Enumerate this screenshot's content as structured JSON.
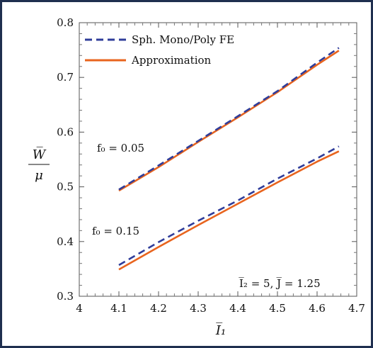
{
  "chart_data": {
    "type": "line",
    "xlabel": "I̅₁",
    "ylabel_numerator": "W̅",
    "ylabel_denominator": "μ",
    "xlim": [
      4.0,
      4.7
    ],
    "ylim": [
      0.3,
      0.8
    ],
    "xticks": [
      4.0,
      4.1,
      4.2,
      4.3,
      4.4,
      4.5,
      4.6,
      4.7
    ],
    "yticks": [
      0.3,
      0.4,
      0.5,
      0.6,
      0.7,
      0.8
    ],
    "xtick_labels": [
      "4",
      "4.1",
      "4.2",
      "4.3",
      "4.4",
      "4.5",
      "4.6",
      "4.7"
    ],
    "ytick_labels": [
      "0.3",
      "0.4",
      "0.5",
      "0.6",
      "0.7",
      "0.8"
    ],
    "grid": false,
    "legend_position": "top-left",
    "legend": [
      {
        "label": "Sph. Mono/Poly FE",
        "color": "#2f3d9a",
        "style": "dashed"
      },
      {
        "label": "Approximation",
        "color": "#e8641e",
        "style": "solid"
      }
    ],
    "annotations": [
      {
        "text": "f₀ = 0.05"
      },
      {
        "text": "f₀ = 0.15"
      },
      {
        "text": "I̅₂ = 5,  J̅ = 1.25"
      }
    ],
    "series": [
      {
        "group": "f0=0.05",
        "kind": "fe",
        "color": "#2f3d9a",
        "style": "dashed",
        "x": [
          4.1,
          4.2,
          4.3,
          4.4,
          4.5,
          4.6,
          4.655
        ],
        "y": [
          0.495,
          0.539,
          0.584,
          0.629,
          0.675,
          0.727,
          0.754
        ]
      },
      {
        "group": "f0=0.05",
        "kind": "approx",
        "color": "#e8641e",
        "style": "solid",
        "x": [
          4.1,
          4.2,
          4.3,
          4.4,
          4.5,
          4.6,
          4.655
        ],
        "y": [
          0.493,
          0.536,
          0.582,
          0.627,
          0.673,
          0.723,
          0.749
        ]
      },
      {
        "group": "f0=0.15",
        "kind": "fe",
        "color": "#2f3d9a",
        "style": "dashed",
        "x": [
          4.1,
          4.2,
          4.3,
          4.4,
          4.5,
          4.6,
          4.655
        ],
        "y": [
          0.357,
          0.399,
          0.438,
          0.475,
          0.515,
          0.552,
          0.574
        ]
      },
      {
        "group": "f0=0.15",
        "kind": "approx",
        "color": "#e8641e",
        "style": "solid",
        "x": [
          4.1,
          4.2,
          4.3,
          4.4,
          4.5,
          4.6,
          4.655
        ],
        "y": [
          0.349,
          0.39,
          0.43,
          0.469,
          0.508,
          0.546,
          0.565
        ]
      }
    ]
  }
}
